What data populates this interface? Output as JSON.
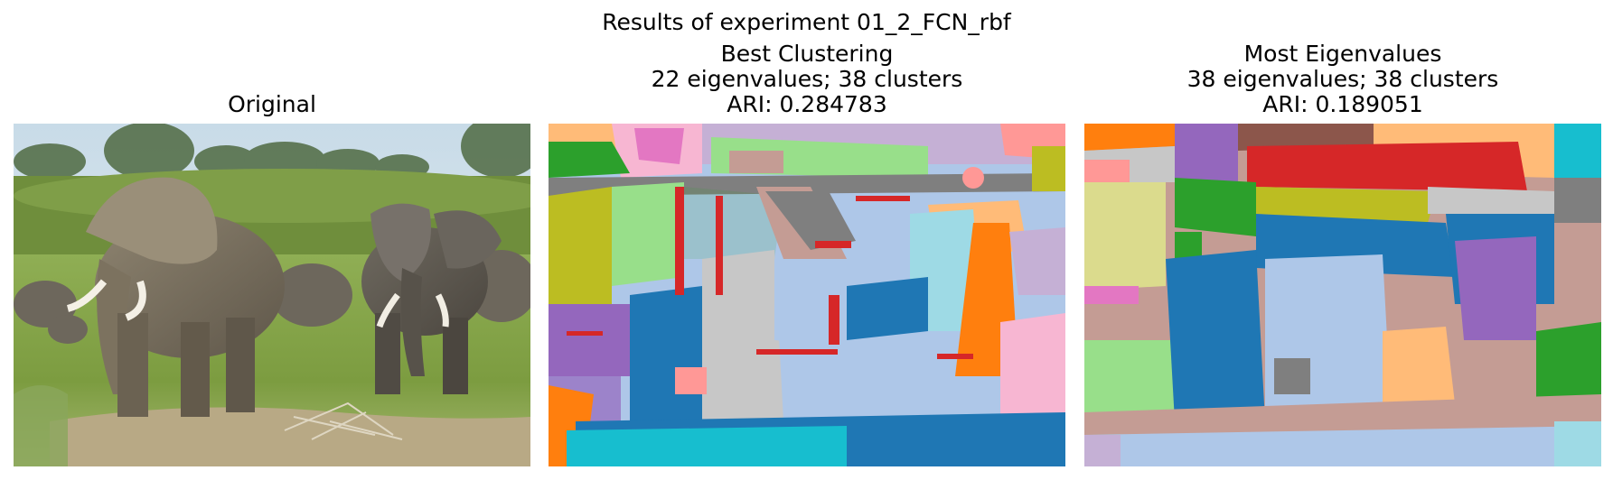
{
  "figure": {
    "suptitle": "Results of experiment 01_2_FCN_rbf"
  },
  "panels": [
    {
      "title_lines": [
        "Original"
      ]
    },
    {
      "title_lines": [
        "Best Clustering",
        "22 eigenvalues; 38 clusters",
        "ARI: 0.284783"
      ]
    },
    {
      "title_lines": [
        "Most Eigenvalues",
        "38 eigenvalues; 38 clusters",
        "ARI: 0.189051"
      ]
    }
  ],
  "colors": {
    "tab_blue": "#1f77b4",
    "tab_orange": "#ff7f0e",
    "tab_green": "#2ca02c",
    "tab_red": "#d62728",
    "tab_purple": "#9467bd",
    "tab_brown": "#8c564b",
    "tab_pink": "#e377c2",
    "tab_gray": "#7f7f7f",
    "tab_olive": "#bcbd22",
    "tab_cyan": "#17becf",
    "light_blue": "#aec7e8",
    "light_orange": "#ffbb78",
    "light_green": "#98df8a",
    "light_red": "#ff9896",
    "light_purple": "#c5b0d5",
    "light_brown": "#c49c94",
    "light_pink": "#f7b6d2",
    "light_gray": "#c7c7c7",
    "light_olive": "#dbdb8d",
    "light_cyan": "#9edae5"
  }
}
